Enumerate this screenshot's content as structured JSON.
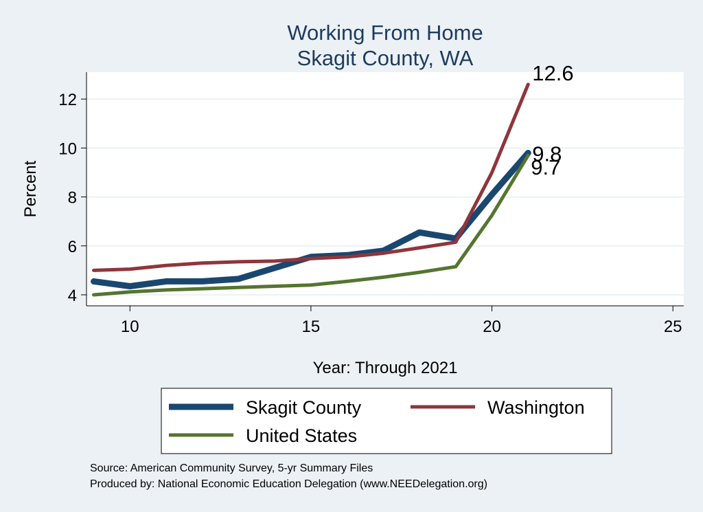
{
  "chart_data": {
    "type": "line",
    "title": "Working From Home",
    "subtitle": "Skagit County, WA",
    "xlabel": "Year: Through 2021",
    "ylabel": "Percent",
    "xlim": [
      8.8,
      25.3
    ],
    "ylim": [
      3.55,
      13.1
    ],
    "xticks": [
      10,
      15,
      20,
      25
    ],
    "yticks": [
      4,
      6,
      8,
      10,
      12
    ],
    "grid": true,
    "legend_position": "bottom",
    "series": [
      {
        "name": "Skagit County",
        "color": "#1a476f",
        "x": [
          9,
          10,
          11,
          12,
          13,
          14,
          15,
          16,
          17,
          18,
          19,
          20,
          21
        ],
        "values": [
          4.55,
          4.35,
          4.55,
          4.55,
          4.65,
          5.1,
          5.55,
          5.62,
          5.8,
          6.55,
          6.3,
          8.1,
          9.8
        ],
        "end_label": "9.8"
      },
      {
        "name": "Washington",
        "color": "#90353b",
        "x": [
          9,
          10,
          11,
          12,
          13,
          14,
          15,
          16,
          17,
          18,
          19,
          20,
          21
        ],
        "values": [
          5.0,
          5.05,
          5.2,
          5.3,
          5.35,
          5.38,
          5.48,
          5.55,
          5.7,
          5.92,
          6.15,
          9.0,
          12.6
        ],
        "end_label": "12.6"
      },
      {
        "name": "United States",
        "color": "#55752f",
        "x": [
          9,
          10,
          11,
          12,
          13,
          14,
          15,
          16,
          17,
          18,
          19,
          20,
          21
        ],
        "values": [
          4.0,
          4.12,
          4.2,
          4.25,
          4.3,
          4.35,
          4.4,
          4.55,
          4.72,
          4.92,
          5.15,
          7.25,
          9.7
        ],
        "end_label": "9.7"
      }
    ]
  },
  "footnotes": [
    "Source: American Community Survey, 5-yr Summary Files",
    "Produced by: National Economic Education Delegation (www.NEEDelegation.org)"
  ]
}
